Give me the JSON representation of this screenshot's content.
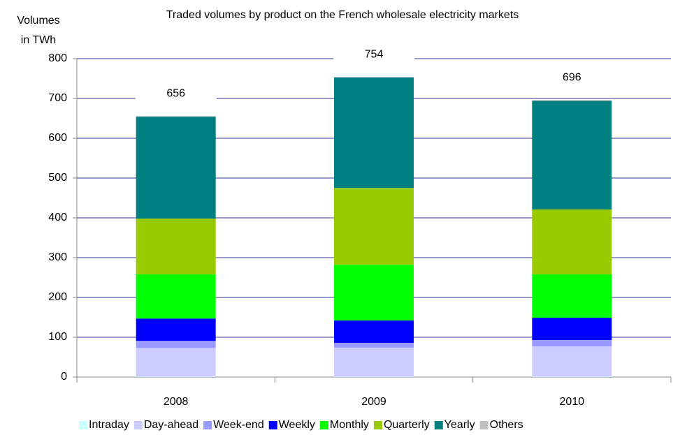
{
  "chart_data": {
    "type": "stacked_bar",
    "title": "Traded volumes by product on the French wholesale electricity markets",
    "y_label": [
      "Volumes",
      "in TWh"
    ],
    "categories": [
      "2008",
      "2009",
      "2010"
    ],
    "series": [
      {
        "name": "Intraday",
        "color": "#ccffff",
        "values": [
          1,
          1,
          1
        ]
      },
      {
        "name": "Day-ahead",
        "color": "#ccccff",
        "values": [
          72,
          73,
          76
        ]
      },
      {
        "name": "Week-end",
        "color": "#9999ff",
        "values": [
          18,
          12,
          16
        ]
      },
      {
        "name": "Weekly",
        "color": "#0000ff",
        "values": [
          56,
          56,
          56
        ]
      },
      {
        "name": "Monthly",
        "color": "#00ff00",
        "values": [
          111,
          140,
          109
        ]
      },
      {
        "name": "Quarterly",
        "color": "#99cc00",
        "values": [
          140,
          193,
          163
        ]
      },
      {
        "name": "Yearly",
        "color": "#008080",
        "values": [
          256,
          278,
          273
        ]
      },
      {
        "name": "Others",
        "color": "#c0c0c0",
        "values": [
          2,
          1,
          2
        ]
      }
    ],
    "totals": [
      656,
      754,
      696
    ],
    "ylim": [
      0,
      800
    ],
    "yticks": [
      0,
      100,
      200,
      300,
      400,
      500,
      600,
      700,
      800
    ],
    "grid": true,
    "legend": "bottom"
  }
}
